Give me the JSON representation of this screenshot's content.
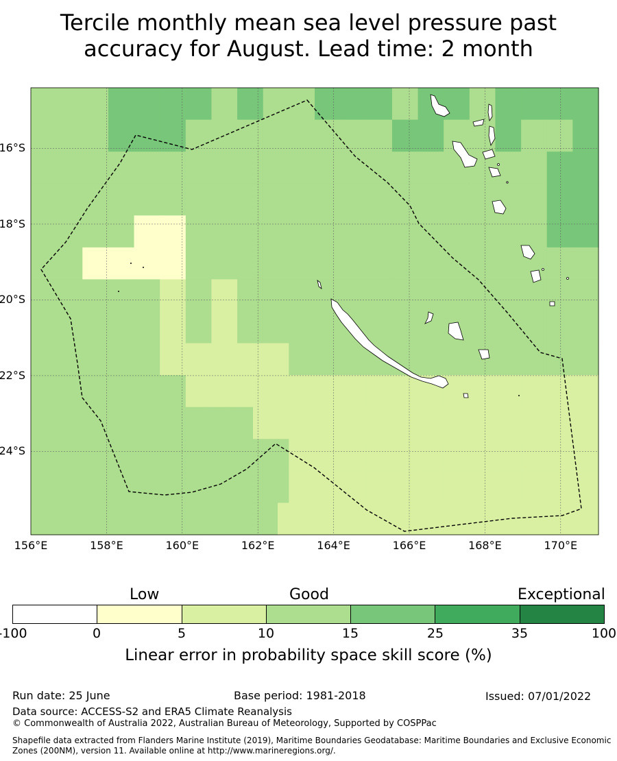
{
  "title_line1": "Tercile monthly mean sea level pressure past",
  "title_line2": "accuracy for August. Lead time: 2 month",
  "map": {
    "lon_range": [
      156,
      171
    ],
    "lat_range": [
      -26.2,
      -14.4
    ],
    "grid_step_deg": 0.83,
    "lat_ticks": [
      "16°S",
      "18°S",
      "20°S",
      "22°S",
      "24°S"
    ],
    "lon_ticks": [
      "156°E",
      "158°E",
      "160°E",
      "162°E",
      "164°E",
      "166°E",
      "168°E",
      "170°E"
    ],
    "skill_classes": {
      "a": "#ffffcc",
      "b": "#d9f0a3",
      "c": "#addd8e",
      "d": "#78c679"
    },
    "grid_rows_north_to_south": [
      "cccddddcdccdddcddcdddd",
      "cccdddccccccccddccdccd",
      "ccccccccccccccccccccdd",
      "ccccccccccccccccccccdd",
      "ccccaaccccccccccccccdd",
      "ccaaaacccccccccccccccc",
      "cccccbcbcccccccccccccc",
      "cccccbcbcccccccccccccc",
      "cccccbbbbbcccccccccccc",
      "ccccccbbbbbbbbbbbbbbbb",
      "cccccccccbbbbbbbbbbbbbb",
      "ccccccccccbbbbbbbbbbbb",
      "ccccccccccbbbbbbbbbbbb",
      "ccccccccccbbbbbbbbbbbbb"
    ]
  },
  "colorbar": {
    "categories": [
      "Low",
      "Good",
      "Exceptional"
    ],
    "colors": [
      "#ffffff",
      "#ffffcc",
      "#d9f0a3",
      "#addd8e",
      "#78c679",
      "#41ab5d",
      "#238443"
    ],
    "ticks": [
      "-100",
      "0",
      "5",
      "10",
      "15",
      "25",
      "35",
      "100"
    ],
    "label": "Linear error in probability space skill score (%)"
  },
  "footer": {
    "run_date": "Run date: 25 June",
    "base_period": "Base period: 1981-2018",
    "issued": "Issued: 07/01/2022",
    "data_source": "Data source: ACCESS-S2 and ERA5 Climate Reanalysis",
    "copyright": "© Commonwealth of Australia 2022, Australian Bureau of Meteorology, Supported by COSPPac",
    "shapefile": "Shapefile data extracted from Flanders Marine Institute (2019), Maritime Boundaries Geodatabase: Maritime Boundaries and Exclusive Economic Zones (200NM), version 11. Available online at http://www.marineregions.org/."
  }
}
